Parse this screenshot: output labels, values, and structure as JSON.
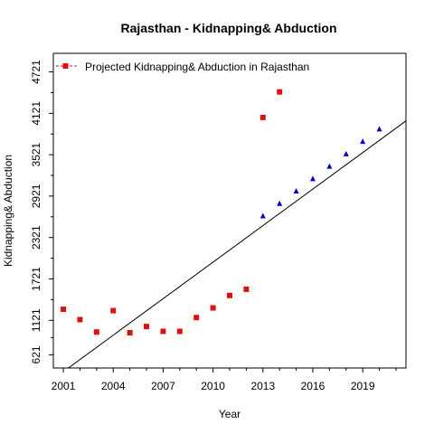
{
  "chart_data": {
    "type": "scatter",
    "title": "Rajasthan  -  Kidnapping& Abduction",
    "xlabel": "Year",
    "ylabel": "Kidnapping& Abduction",
    "xlim": [
      2000.4,
      2021.6
    ],
    "ylim": [
      430,
      4990
    ],
    "x_ticks": [
      2001,
      2004,
      2007,
      2010,
      2013,
      2016,
      2019
    ],
    "y_ticks": [
      621,
      1121,
      1721,
      2321,
      2921,
      3521,
      4121,
      4721
    ],
    "grid": false,
    "legend": {
      "position": "top-left",
      "entries": [
        "Projected Kidnapping& Abduction  in  Rajasthan"
      ]
    },
    "series": [
      {
        "name": "Projected Kidnapping& Abduction  in  Rajasthan",
        "marker": "square",
        "color": "#dd1111",
        "x": [
          2001,
          2002,
          2003,
          2004,
          2005,
          2006,
          2007,
          2008,
          2009,
          2010,
          2011,
          2012,
          2013,
          2014
        ],
        "y": [
          1281,
          1131,
          951,
          1261,
          941,
          1031,
          961,
          961,
          1161,
          1301,
          1481,
          1571,
          4061,
          4431
        ]
      },
      {
        "marker": "triangle",
        "color": "#0000cc",
        "x": [
          2013,
          2014,
          2015,
          2016,
          2017,
          2018,
          2019,
          2020
        ],
        "y": [
          2631,
          2811,
          2991,
          3171,
          3351,
          3531,
          3711,
          3891
        ]
      }
    ],
    "trend_line": {
      "color": "#000000",
      "x": [
        2001,
        2021.6
      ],
      "y": [
        376,
        4011
      ]
    }
  }
}
